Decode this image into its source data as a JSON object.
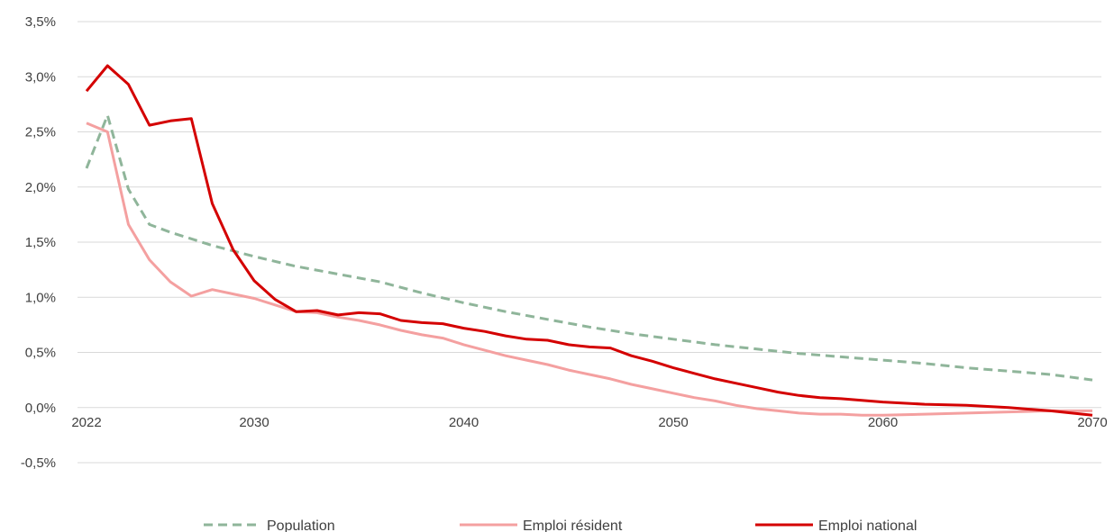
{
  "chart_data": {
    "type": "line",
    "ylim": [
      -0.005,
      0.035
    ],
    "xlim": [
      2022,
      2070
    ],
    "y_ticks": [
      -0.005,
      0,
      0.005,
      0.01,
      0.015,
      0.02,
      0.025,
      0.03,
      0.035
    ],
    "y_tick_labels": [
      "-0,5%",
      "0,0%",
      "0,5%",
      "1,0%",
      "1,5%",
      "2,0%",
      "2,5%",
      "3,0%",
      "3,5%"
    ],
    "x_ticks": [
      2022,
      2030,
      2040,
      2050,
      2060,
      2070
    ],
    "x_tick_labels": [
      "2022",
      "2030",
      "2040",
      "2050",
      "2060",
      "2070"
    ],
    "grid": true,
    "legend_position": "bottom",
    "series": [
      {
        "name": "Population",
        "color": "#8fb59a",
        "dash": "dashed",
        "x": [
          2022,
          2023,
          2024,
          2025,
          2026,
          2027,
          2028,
          2030,
          2032,
          2034,
          2036,
          2038,
          2040,
          2042,
          2044,
          2046,
          2048,
          2050,
          2052,
          2054,
          2056,
          2058,
          2060,
          2062,
          2064,
          2066,
          2068,
          2070
        ],
        "values": [
          0.0217,
          0.0265,
          0.0198,
          0.0166,
          0.0159,
          0.0153,
          0.0147,
          0.0137,
          0.0128,
          0.0121,
          0.0114,
          0.0104,
          0.0095,
          0.0087,
          0.008,
          0.0073,
          0.0067,
          0.0062,
          0.0057,
          0.0053,
          0.0049,
          0.0046,
          0.0043,
          0.004,
          0.0036,
          0.0033,
          0.003,
          0.0025
        ]
      },
      {
        "name": "Emploi résident",
        "color": "#f4a0a0",
        "dash": "solid",
        "x": [
          2022,
          2023,
          2024,
          2025,
          2026,
          2027,
          2028,
          2029,
          2030,
          2031,
          2032,
          2033,
          2034,
          2035,
          2036,
          2037,
          2038,
          2039,
          2040,
          2041,
          2042,
          2043,
          2044,
          2045,
          2046,
          2047,
          2048,
          2049,
          2050,
          2051,
          2052,
          2053,
          2054,
          2055,
          2056,
          2057,
          2058,
          2059,
          2060,
          2062,
          2064,
          2066,
          2068,
          2070
        ],
        "values": [
          0.0258,
          0.025,
          0.0166,
          0.0134,
          0.0114,
          0.0101,
          0.0107,
          0.0103,
          0.0099,
          0.0093,
          0.0087,
          0.0086,
          0.0082,
          0.0079,
          0.0075,
          0.007,
          0.0066,
          0.0063,
          0.0057,
          0.0052,
          0.0047,
          0.0043,
          0.0039,
          0.0034,
          0.003,
          0.0026,
          0.0021,
          0.0017,
          0.0013,
          0.0009,
          0.0006,
          0.0002,
          -0.0001,
          -0.0003,
          -0.0005,
          -0.0006,
          -0.0006,
          -0.0007,
          -0.0007,
          -0.0006,
          -0.0005,
          -0.0004,
          -0.0003,
          -0.0003
        ]
      },
      {
        "name": "Emploi national",
        "color": "#d40000",
        "dash": "solid",
        "x": [
          2022,
          2023,
          2024,
          2025,
          2026,
          2027,
          2028,
          2029,
          2030,
          2031,
          2032,
          2033,
          2034,
          2035,
          2036,
          2037,
          2038,
          2039,
          2040,
          2041,
          2042,
          2043,
          2044,
          2045,
          2046,
          2047,
          2048,
          2049,
          2050,
          2051,
          2052,
          2053,
          2054,
          2055,
          2056,
          2057,
          2058,
          2060,
          2062,
          2064,
          2066,
          2068,
          2070
        ],
        "values": [
          0.0287,
          0.031,
          0.0293,
          0.0256,
          0.026,
          0.0262,
          0.0185,
          0.0143,
          0.0115,
          0.0098,
          0.0087,
          0.0088,
          0.0084,
          0.0086,
          0.0085,
          0.0079,
          0.0077,
          0.0076,
          0.0072,
          0.0069,
          0.0065,
          0.0062,
          0.0061,
          0.0057,
          0.0055,
          0.0054,
          0.0047,
          0.0042,
          0.0036,
          0.0031,
          0.0026,
          0.0022,
          0.0018,
          0.0014,
          0.0011,
          0.0009,
          0.0008,
          0.0005,
          0.0003,
          0.0002,
          0.0,
          -0.0003,
          -0.0007
        ]
      }
    ]
  }
}
